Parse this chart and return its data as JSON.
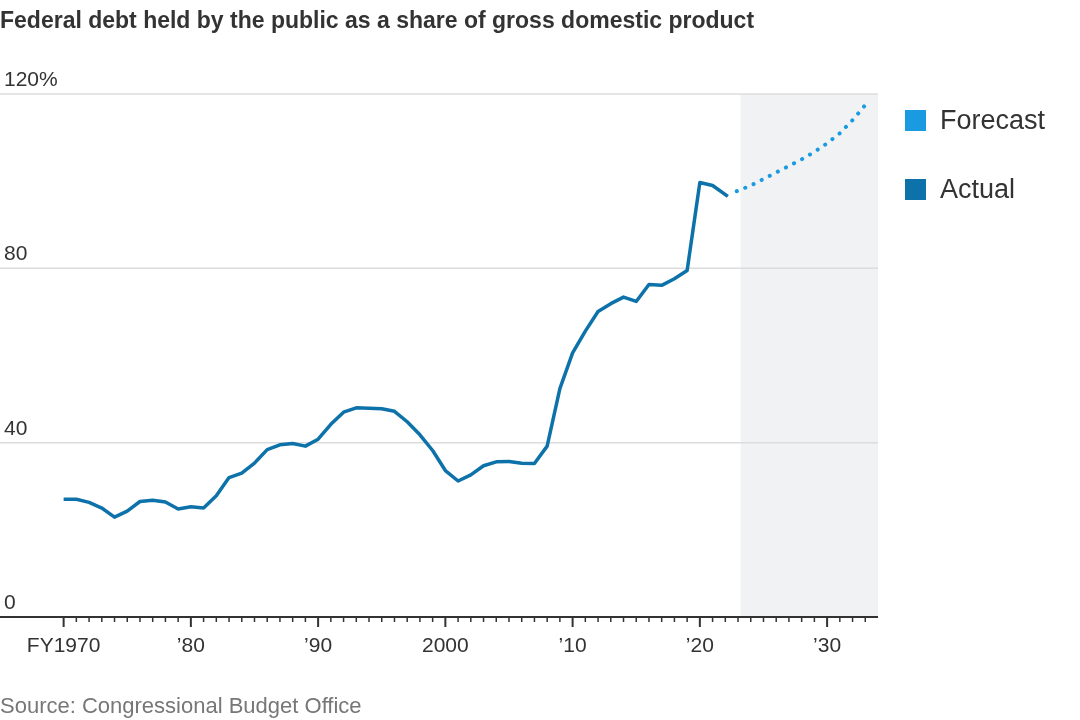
{
  "chart_data": {
    "type": "line",
    "title": "Federal debt held by the public as a share of gross domestic product",
    "annotations": [
      "Source: Congressional Budget Office"
    ],
    "series": [
      {
        "name": "Forecast",
        "color": "#1a9ae0",
        "line_style": "dotted",
        "x": [
          2022.9,
          2024,
          2025,
          2026,
          2027,
          2028,
          2029,
          2030,
          2031,
          2032,
          2033.3
        ],
        "values": [
          97.7,
          99,
          100.5,
          102,
          103.5,
          105,
          106.7,
          108.7,
          111,
          114,
          118.5
        ]
      },
      {
        "name": "Actual",
        "color": "#0e72aa",
        "line_style": "solid",
        "x": [
          1970,
          1971,
          1972,
          1973,
          1974,
          1975,
          1976,
          1977,
          1978,
          1979,
          1980,
          1981,
          1982,
          1983,
          1984,
          1985,
          1986,
          1987,
          1988,
          1989,
          1990,
          1991,
          1992,
          1993,
          1994,
          1995,
          1996,
          1997,
          1998,
          1999,
          2000,
          2001,
          2002,
          2003,
          2004,
          2005,
          2006,
          2007,
          2008,
          2009,
          2010,
          2011,
          2012,
          2013,
          2014,
          2015,
          2016,
          2017,
          2018,
          2019,
          2020,
          2021,
          2022.2
        ],
        "values": [
          27,
          27,
          26.3,
          25,
          22.9,
          24.3,
          26.5,
          26.8,
          26.4,
          24.8,
          25.3,
          25,
          27.8,
          32,
          33,
          35.3,
          38.4,
          39.5,
          39.8,
          39.2,
          40.8,
          44.2,
          47,
          48,
          47.9,
          47.8,
          47.2,
          44.8,
          41.8,
          38.2,
          33.6,
          31.2,
          32.6,
          34.7,
          35.6,
          35.7,
          35.3,
          35.2,
          39.2,
          52.4,
          60.6,
          65.6,
          70.1,
          71.9,
          73.4,
          72.4,
          76.3,
          76.1,
          77.6,
          79.5,
          99.7,
          99,
          96.5
        ]
      }
    ],
    "xlim": [
      1965,
      2034
    ],
    "xticks": [
      {
        "value": 1970,
        "label": "FY1970"
      },
      {
        "value": 1971,
        "label": null
      },
      {
        "value": 1972,
        "label": null
      },
      {
        "value": 1973,
        "label": null
      },
      {
        "value": 1974,
        "label": null
      },
      {
        "value": 1975,
        "label": null
      },
      {
        "value": 1976,
        "label": null
      },
      {
        "value": 1977,
        "label": null
      },
      {
        "value": 1978,
        "label": null
      },
      {
        "value": 1979,
        "label": null
      },
      {
        "value": 1980,
        "label": "’80"
      },
      {
        "value": 1981,
        "label": null
      },
      {
        "value": 1982,
        "label": null
      },
      {
        "value": 1983,
        "label": null
      },
      {
        "value": 1984,
        "label": null
      },
      {
        "value": 1985,
        "label": null
      },
      {
        "value": 1986,
        "label": null
      },
      {
        "value": 1987,
        "label": null
      },
      {
        "value": 1988,
        "label": null
      },
      {
        "value": 1989,
        "label": null
      },
      {
        "value": 1990,
        "label": "’90"
      },
      {
        "value": 1991,
        "label": null
      },
      {
        "value": 1992,
        "label": null
      },
      {
        "value": 1993,
        "label": null
      },
      {
        "value": 1994,
        "label": null
      },
      {
        "value": 1995,
        "label": null
      },
      {
        "value": 1996,
        "label": null
      },
      {
        "value": 1997,
        "label": null
      },
      {
        "value": 1998,
        "label": null
      },
      {
        "value": 1999,
        "label": null
      },
      {
        "value": 2000,
        "label": "2000"
      },
      {
        "value": 2001,
        "label": null
      },
      {
        "value": 2002,
        "label": null
      },
      {
        "value": 2003,
        "label": null
      },
      {
        "value": 2004,
        "label": null
      },
      {
        "value": 2005,
        "label": null
      },
      {
        "value": 2006,
        "label": null
      },
      {
        "value": 2007,
        "label": null
      },
      {
        "value": 2008,
        "label": null
      },
      {
        "value": 2009,
        "label": null
      },
      {
        "value": 2010,
        "label": "’10"
      },
      {
        "value": 2011,
        "label": null
      },
      {
        "value": 2012,
        "label": null
      },
      {
        "value": 2013,
        "label": null
      },
      {
        "value": 2014,
        "label": null
      },
      {
        "value": 2015,
        "label": null
      },
      {
        "value": 2016,
        "label": null
      },
      {
        "value": 2017,
        "label": null
      },
      {
        "value": 2018,
        "label": null
      },
      {
        "value": 2019,
        "label": null
      },
      {
        "value": 2020,
        "label": "’20"
      },
      {
        "value": 2021,
        "label": null
      },
      {
        "value": 2022,
        "label": null
      },
      {
        "value": 2023,
        "label": null
      },
      {
        "value": 2024,
        "label": null
      },
      {
        "value": 2025,
        "label": null
      },
      {
        "value": 2026,
        "label": null
      },
      {
        "value": 2027,
        "label": null
      },
      {
        "value": 2028,
        "label": null
      },
      {
        "value": 2029,
        "label": null
      },
      {
        "value": 2030,
        "label": "’30"
      },
      {
        "value": 2031,
        "label": null
      },
      {
        "value": 2032,
        "label": null
      },
      {
        "value": 2033,
        "label": null
      }
    ],
    "ylim": [
      0,
      120
    ],
    "yticks": [
      0,
      40,
      80,
      {
        "value": 120,
        "label": "120%"
      }
    ],
    "bands": [
      {
        "axis": "x",
        "from": 2023.2,
        "to": 2034,
        "color": "#f1f2f4"
      }
    ],
    "grid": "y",
    "legend": "top right"
  }
}
